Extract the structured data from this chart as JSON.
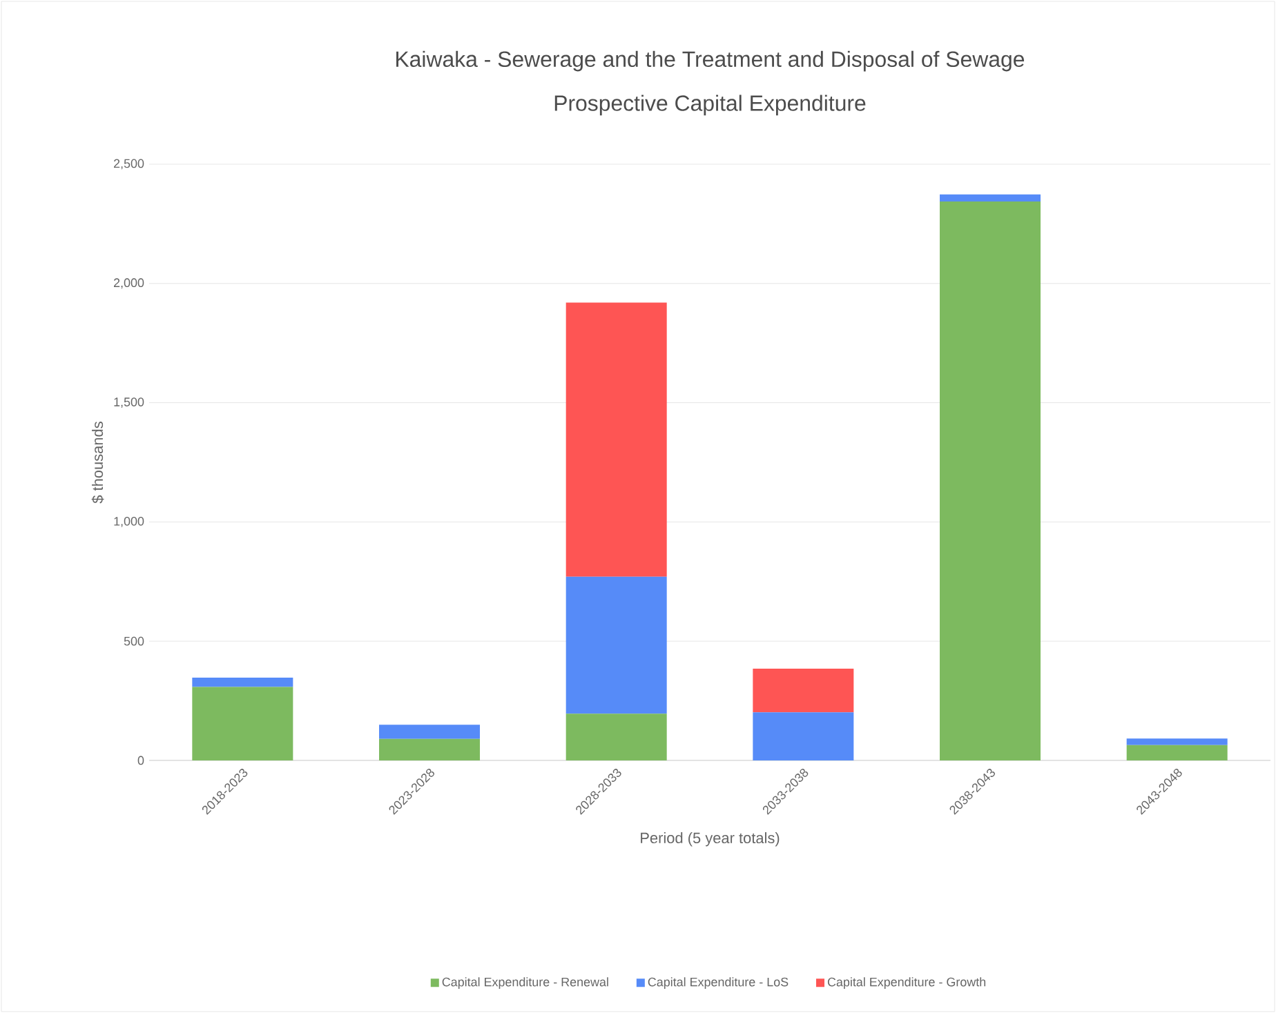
{
  "chart_data": {
    "type": "bar",
    "title": "Kaiwaka - Sewerage and the Treatment and Disposal of Sewage",
    "subtitle": "Prospective Capital Expenditure",
    "xlabel": "Period (5 year totals)",
    "ylabel": "$ thousands",
    "categories": [
      "2018-2023",
      "2023-2028",
      "2028-2033",
      "2033-2038",
      "2038-2043",
      "2043-2048"
    ],
    "series": [
      {
        "name": "Capital Expenditure - Renewal",
        "color": "#7dba5f",
        "values": [
          308,
          90,
          196,
          0,
          2344,
          64
        ]
      },
      {
        "name": "Capital Expenditure - LoS",
        "color": "#568bf8",
        "values": [
          39,
          60,
          574,
          202,
          29,
          28
        ]
      },
      {
        "name": "Capital Expenditure - Growth",
        "color": "#fe5554",
        "values": [
          0,
          0,
          1150,
          183,
          0,
          0
        ]
      }
    ],
    "stacked": true,
    "ylim": [
      0,
      2500
    ],
    "yticks": [
      0,
      500,
      {
        "value": 1000,
        "label": "1,000"
      },
      {
        "value": 1500,
        "label": "1,500"
      },
      {
        "value": 2000,
        "label": "2,000"
      },
      {
        "value": 2500,
        "label": "2,500"
      }
    ],
    "grid": "y",
    "legend": "bottom"
  }
}
